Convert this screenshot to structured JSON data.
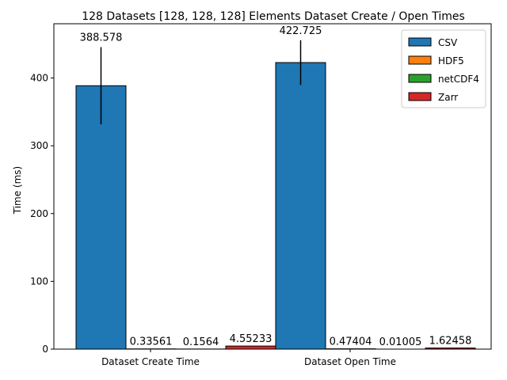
{
  "chart_data": {
    "type": "bar",
    "title": "128 Datasets [128, 128, 128] Elements Dataset Create / Open Times",
    "xlabel": "",
    "ylabel": "Time (ms)",
    "ylim": [
      0,
      480
    ],
    "yticks": [
      0,
      100,
      200,
      300,
      400
    ],
    "categories": [
      "Dataset Create Time",
      "Dataset Open Time"
    ],
    "legend_position": "top-right",
    "grid": false,
    "series": [
      {
        "name": "CSV",
        "color": "#1f77b4",
        "values": [
          388.578,
          422.725
        ],
        "labels": [
          "388.578",
          "422.725"
        ],
        "errors": [
          57,
          33
        ]
      },
      {
        "name": "HDF5",
        "color": "#ff7f0e",
        "values": [
          0.33561,
          0.47404
        ],
        "labels": [
          "0.33561",
          "0.47404"
        ],
        "errors": [
          0,
          0
        ]
      },
      {
        "name": "netCDF4",
        "color": "#2ca02c",
        "values": [
          0.1564,
          0.01005
        ],
        "labels": [
          "0.1564",
          "0.01005"
        ],
        "errors": [
          0,
          0
        ]
      },
      {
        "name": "Zarr",
        "color": "#d62728",
        "values": [
          4.55233,
          1.62458
        ],
        "labels": [
          "4.55233",
          "1.62458"
        ],
        "errors": [
          0,
          0
        ]
      }
    ]
  }
}
